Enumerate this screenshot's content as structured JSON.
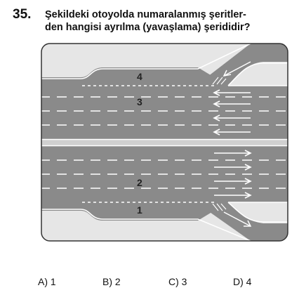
{
  "question": {
    "number": "35.",
    "line1": "Şekildeki otoyolda numaralanmış şeritler-",
    "line2": "den hangisi ayrılma (yavaşlama) şerididir?"
  },
  "figure": {
    "lane_labels": [
      "4",
      "3",
      "2",
      "1"
    ],
    "colors": {
      "road": "#8a8a8a",
      "roadside": "#e6e6e6",
      "markings": "#ffffff"
    }
  },
  "answers": [
    {
      "label": "A) 1"
    },
    {
      "label": "B) 2"
    },
    {
      "label": "C) 3"
    },
    {
      "label": "D) 4"
    }
  ]
}
